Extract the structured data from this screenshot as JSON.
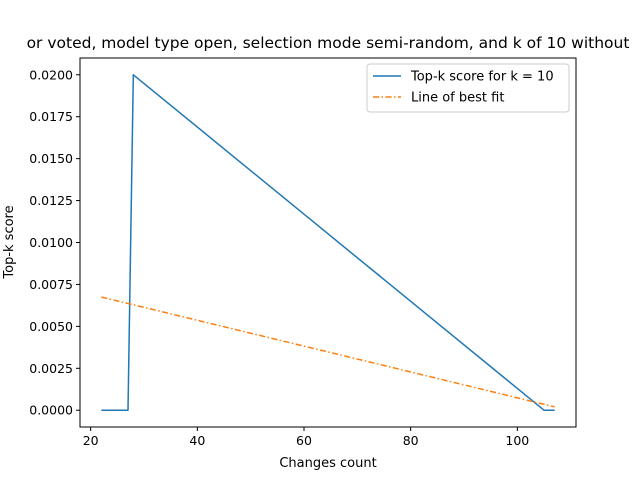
{
  "chart_data": {
    "type": "line",
    "title": "or voted, model type open, selection mode semi-random, and k of 10 without",
    "xlabel": "Changes count",
    "ylabel": "Top-k score",
    "xlim": [
      18,
      111
    ],
    "ylim": [
      -0.001,
      0.021
    ],
    "xticks": [
      20,
      40,
      60,
      80,
      100
    ],
    "xtick_labels": [
      "20",
      "40",
      "60",
      "80",
      "100"
    ],
    "yticks": [
      0.0,
      0.0025,
      0.005,
      0.0075,
      0.01,
      0.0125,
      0.015,
      0.0175,
      0.02
    ],
    "ytick_labels": [
      "0.0000",
      "0.0025",
      "0.0050",
      "0.0075",
      "0.0100",
      "0.0125",
      "0.0150",
      "0.0175",
      "0.0200"
    ],
    "grid": false,
    "legend_position": "top-right",
    "series": [
      {
        "name": "Top-k score for k = 10",
        "color": "#1f77b4",
        "style": "solid",
        "x": [
          22,
          27,
          28,
          105,
          107
        ],
        "y": [
          0.0,
          0.0,
          0.02,
          0.0,
          0.0
        ]
      },
      {
        "name": "Line of best fit",
        "color": "#ff7f0e",
        "style": "dashdot",
        "x": [
          22,
          107
        ],
        "y": [
          0.00675,
          0.0002
        ]
      }
    ]
  }
}
